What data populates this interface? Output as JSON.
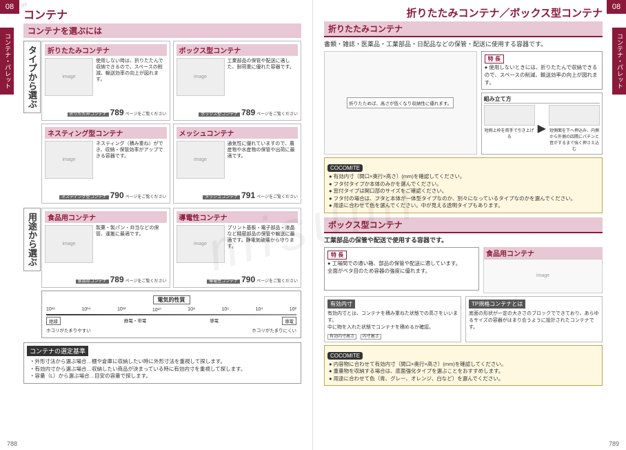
{
  "watermark": "misumi",
  "left": {
    "corner": "08",
    "sideTab": "コンテナ・パレット",
    "mainTitle": "コンテナ",
    "subBand": "コンテナを選ぶには",
    "sec1": {
      "vert": "タイプから選ぶ",
      "cards": [
        {
          "head": "折りたたみコンテナ",
          "desc": "使用しない時は、折りたたんで収納できるので、スペースの削減、輸送効率の向上が図れます。",
          "footLabel": "折りたたみコンテナ",
          "page": "789",
          "note": "ページをご覧ください"
        },
        {
          "head": "ボックス型コンテナ",
          "desc": "工業部品の保管や配送に適した、耐荷重に優れた容器です。",
          "footLabel": "ボックス型コンテナ",
          "page": "789",
          "note": "ページをご覧ください"
        },
        {
          "head": "ネスティング型コンテナ",
          "desc": "ネスティング（積み重ね）ができ、収納・保管効率がアップできる容器です。",
          "footLabel": "ネスティング型コンテナ",
          "page": "790",
          "note": "ページをご覧ください"
        },
        {
          "head": "メッシュコンテナ",
          "desc": "通気性に優れていますので、農産物や水産物の保管や出荷に最適です。",
          "footLabel": "メッシュコンテナ",
          "page": "791",
          "note": "ページをご覧ください"
        }
      ]
    },
    "sec2": {
      "vert": "用途から選ぶ",
      "cards": [
        {
          "head": "食品用コンテナ",
          "desc": "製菓・製パン・弁当などの保管、運搬に最適です。",
          "footLabel": "食品用コンテナ",
          "page": "789",
          "note": "ページをご覧ください"
        },
        {
          "head": "導電性コンテナ",
          "desc": "プリント基板・電子部品・液晶など精密部品の保管や輸送に最適です。静電気破壊から守ります。",
          "footLabel": "導電性コンテナ",
          "page": "790",
          "note": "ページをご覧ください"
        }
      ],
      "elec": {
        "title": "電気的性質",
        "scale": [
          "10¹⁶",
          "10¹⁴",
          "10¹²",
          "10¹⁰",
          "10⁸",
          "10⁶",
          "10⁴",
          "10²"
        ],
        "left": "絶縁",
        "right": "導電",
        "row1l": "ホコリがたまりやすい",
        "row1r": "ホコリがたまりにくい",
        "mid1": "静電・帯電",
        "mid2": "導電"
      }
    },
    "criteria": {
      "head": "コンテナの選定基準",
      "items": [
        "・外形寸法から選ぶ場合…棚や倉庫に収納したい時に外形寸法を重視して探します。",
        "・有効内寸から選ぶ場合…収納したい商品が決まっている時に有効内寸を重視して探します。",
        "・容量（L）から選ぶ場合…目安の容量で探します。"
      ]
    },
    "pageNum": "788"
  },
  "right": {
    "corner": "08",
    "sideTab": "コンテナ・パレット",
    "mainTitle": "折りたたみコンテナ／ボックス型コンテナ",
    "sec1": {
      "head": "折りたたみコンテナ",
      "sub": "書類・雑誌・医薬品・工業部品・日配品などの保管・配送に使用する容器です。",
      "note1": "折りたためば、高さが低くなり収納性に優れます。",
      "featLabel": "特 長",
      "feat": "● 使用しないときには、折りたたんで収納できるので、スペースの削減、輸送効率の向上が図れます。",
      "asmHead": "組み立て方",
      "asm": [
        {
          "txt": "短側上枠を両手で引き上げる"
        },
        {
          "txt": "短側面を下へ押込み、内側から外側の四隅にパチンと音がするまで強く押さえ込む"
        }
      ],
      "coco": "COCOMITE",
      "cocoItems": [
        "● 有効内寸（間口×奥行×高さ）(mm)を確認してください。",
        "● フタ付タイプか本体のみかを選んでください。",
        "● 窓付タイプは開口部のサイズをご確認ください。",
        "● フタ付の場合は、フタと本体が一体型タイプなのか、別々になっているタイプなのかを選んでください。",
        "● 用途に合わせて色を選んでください。中が見える透明タイプもあります。"
      ]
    },
    "sec2": {
      "head": "ボックス型コンテナ",
      "sub": "工業部品の保管や配送で使用する容器です。",
      "foodHead": "食品用コンテナ",
      "featLabel": "特 長",
      "feat": [
        "● 工場間での通い箱、部品の保管や配送に適しています。",
        "全面がベタ目のため容器の強度に優れます。"
      ],
      "block1Head": "有効内寸",
      "block1": "有効内寸とは、コンテナを積み重ねた状態での高さをいいます。\n中に物を入れた状態でコンテナを積めるか確認。",
      "block1Labels": [
        "有効内寸高さ",
        "内寸高さ"
      ],
      "block2Head": "TP規格コンテナとは",
      "block2": "底面の形状が一定の大きさのブロックでできており、あらゆるサイズの容器がはまり合うように設計されたコンテナです。",
      "coco": "COCOMITE",
      "cocoItems": [
        "● 内容物に合わせて有効内寸（間口×奥行×高さ）(mm)を確認してください。",
        "● 重量物を収納する場合は、底面強化タイプを選ぶことをおすすめします。",
        "● 用途に合わせて色（青、グレー、オレンジ、白など）を選んでください。"
      ]
    },
    "pageNum": "789"
  }
}
